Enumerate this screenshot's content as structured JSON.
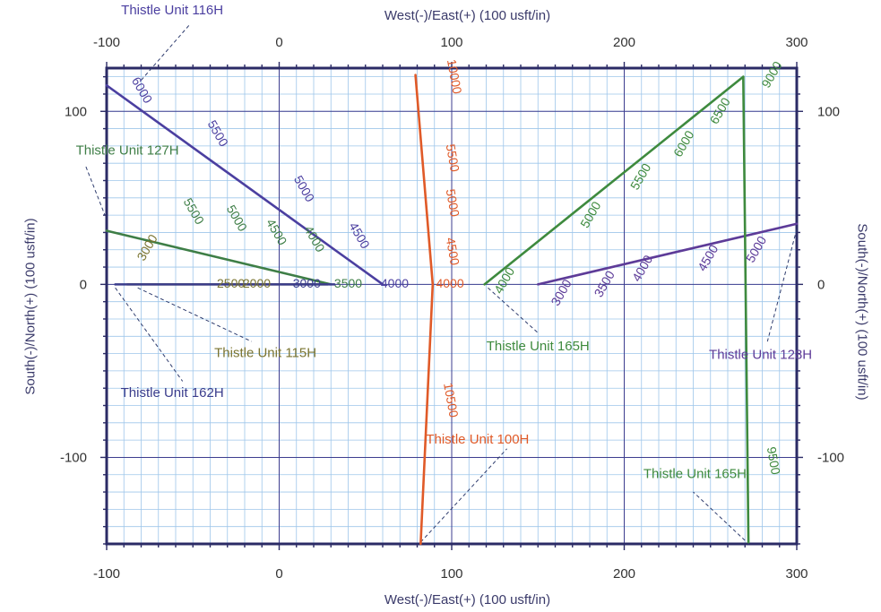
{
  "chart_data": {
    "type": "line",
    "title": "",
    "xlabel": "West(-)/East(+) (100 usft/in)",
    "ylabel": "South(-)/North(+) (100 usft/in)",
    "xlim": [
      -100,
      300
    ],
    "ylim": [
      -150,
      125
    ],
    "x_ticks": [
      -100,
      0,
      100,
      200,
      300
    ],
    "y_ticks": [
      100,
      0,
      -100
    ],
    "grid": true,
    "legend": "none",
    "colors": {
      "grid_minor": "#9ec6ea",
      "grid_major": "#3d3d8f",
      "frame": "#2b2b66",
      "tick_text": "#333333",
      "axis_title": "#3a3a6a"
    },
    "series": [
      {
        "name": "Thistle Unit 116H",
        "color": "#4b3fa0",
        "points": [
          [
            -100,
            115
          ],
          [
            60,
            0
          ]
        ],
        "depth_labels": [
          {
            "text": "6000",
            "x": -80,
            "y": 112
          },
          {
            "text": "5500",
            "x": -36,
            "y": 87
          },
          {
            "text": "5000",
            "x": 14,
            "y": 55
          },
          {
            "text": "4500",
            "x": 46,
            "y": 28
          },
          {
            "text": "4000",
            "x": 67,
            "y": 0
          }
        ],
        "label": {
          "text": "Thistle Unit 116H",
          "x": -62,
          "y": 158
        },
        "leader": [
          [
            -80,
            118
          ],
          [
            -52,
            150
          ]
        ]
      },
      {
        "name": "Thistle Unit 127H",
        "color": "#3e7e46",
        "points": [
          [
            -100,
            31
          ],
          [
            30,
            0
          ]
        ],
        "depth_labels": [
          {
            "text": "5500",
            "x": -50,
            "y": 42
          },
          {
            "text": "5000",
            "x": -25,
            "y": 38
          },
          {
            "text": "4500",
            "x": -2,
            "y": 30
          },
          {
            "text": "4000",
            "x": 20,
            "y": 26
          },
          {
            "text": "3500",
            "x": 40,
            "y": 0
          }
        ],
        "label": {
          "text": "Thistle Unit 127H",
          "x": -88,
          "y": 77
        },
        "leader": [
          [
            -112,
            68
          ],
          [
            -101,
            40
          ]
        ]
      },
      {
        "name": "Thistle Unit 115H",
        "color": "#7a7430",
        "points": [
          [
            -88,
            0
          ],
          [
            28,
            0
          ]
        ],
        "depth_labels": [
          {
            "text": "3000",
            "x": -76,
            "y": 21
          },
          {
            "text": "2500",
            "x": -28,
            "y": 0
          },
          {
            "text": "2000",
            "x": -13,
            "y": 0
          }
        ],
        "label": {
          "text": "Thistle Unit 115H",
          "x": -8,
          "y": -40
        },
        "leader": [
          [
            -82,
            -2
          ],
          [
            -16,
            -33
          ]
        ]
      },
      {
        "name": "Thistle Unit 162H",
        "color": "#3a3c8c",
        "points": [
          [
            -95,
            0
          ],
          [
            32,
            0
          ]
        ],
        "depth_labels": [
          {
            "text": "3000",
            "x": 16,
            "y": 0
          }
        ],
        "label": {
          "text": "Thistle Unit 162H",
          "x": -62,
          "y": -63
        },
        "leader": [
          [
            -95,
            -2
          ],
          [
            -56,
            -56
          ]
        ]
      },
      {
        "name": "Thistle Unit 100H",
        "color": "#e05a28",
        "points": [
          [
            79,
            121
          ],
          [
            89,
            0
          ],
          [
            82,
            -150
          ]
        ],
        "depth_labels": [
          {
            "text": "10000",
            "x": 101,
            "y": 120
          },
          {
            "text": "5500",
            "x": 100,
            "y": 73
          },
          {
            "text": "5000",
            "x": 100,
            "y": 47
          },
          {
            "text": "4500",
            "x": 100,
            "y": 19
          },
          {
            "text": "4000",
            "x": 99,
            "y": 0
          },
          {
            "text": "10500",
            "x": 99,
            "y": -67
          }
        ],
        "label": {
          "text": "Thistle Unit 100H",
          "x": 115,
          "y": -90
        },
        "leader": [
          [
            82,
            -149
          ],
          [
            132,
            -95
          ]
        ]
      },
      {
        "name": "Thistle Unit 165H",
        "color": "#3e8a3e",
        "points": [
          [
            119,
            0
          ],
          [
            269,
            120
          ]
        ],
        "depth_labels": [
          {
            "text": "4000",
            "x": 131,
            "y": 2
          },
          {
            "text": "5000",
            "x": 181,
            "y": 40
          },
          {
            "text": "5500",
            "x": 210,
            "y": 62
          },
          {
            "text": "6000",
            "x": 235,
            "y": 81
          },
          {
            "text": "6500",
            "x": 256,
            "y": 100
          },
          {
            "text": "9000",
            "x": 286,
            "y": 121
          }
        ],
        "label": {
          "text": "Thistle Unit 165H",
          "x": 150,
          "y": -36
        },
        "leader": [
          [
            121,
            -2
          ],
          [
            150,
            -28
          ]
        ]
      },
      {
        "name": "Thistle Unit 128H",
        "color": "#5d3b98",
        "points": [
          [
            150,
            0
          ],
          [
            300,
            35
          ]
        ],
        "depth_labels": [
          {
            "text": "3000",
            "x": 164,
            "y": -5
          },
          {
            "text": "3500",
            "x": 189,
            "y": 0
          },
          {
            "text": "4000",
            "x": 211,
            "y": 9
          },
          {
            "text": "4500",
            "x": 249,
            "y": 15
          },
          {
            "text": "5000",
            "x": 277,
            "y": 20
          }
        ],
        "label": {
          "text": "Thistle Unit 128H",
          "x": 279,
          "y": -41
        },
        "leader": [
          [
            300,
            32
          ],
          [
            283,
            -33
          ]
        ]
      },
      {
        "name": "Thistle Unit 165H (lateral)",
        "color": "#3e8a3e",
        "points": [
          [
            269,
            120
          ],
          [
            272,
            -149
          ]
        ],
        "depth_labels": [
          {
            "text": "9500",
            "x": 286,
            "y": -102
          }
        ],
        "label": {
          "text": "Thistle Unit 165H",
          "x": 241,
          "y": -110
        },
        "leader": [
          [
            270,
            -148
          ],
          [
            240,
            -120
          ]
        ]
      }
    ]
  }
}
